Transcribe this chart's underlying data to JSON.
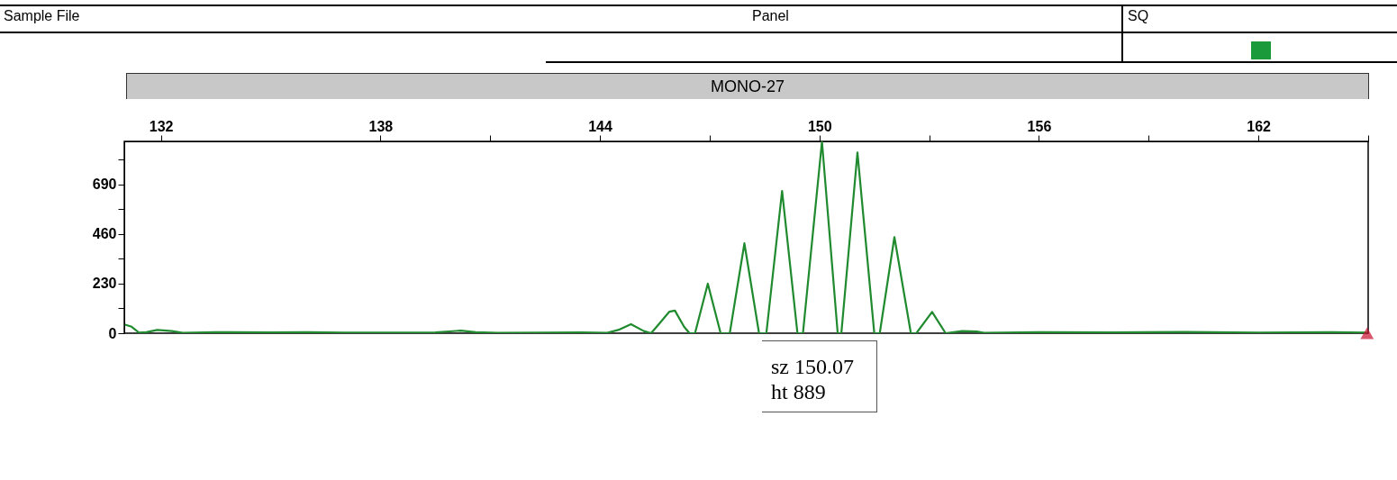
{
  "chart_data": {
    "type": "line",
    "title": "MONO-27",
    "annotations": [
      "Sample File",
      "Panel",
      "SQ",
      "sz 150.07\nht 889"
    ],
    "xlim": [
      131,
      165
    ],
    "xticks": [
      132,
      138,
      144,
      150,
      156,
      162,
      {
        "value": 141,
        "label": null
      },
      {
        "value": 147,
        "label": null
      },
      {
        "value": 153,
        "label": null
      },
      {
        "value": 159,
        "label": null
      },
      {
        "value": 165,
        "label": null
      }
    ],
    "ylim": [
      0,
      890
    ],
    "yticks": [
      0,
      230,
      460,
      690,
      {
        "value": 115,
        "label": null
      },
      {
        "value": 345,
        "label": null
      },
      {
        "value": 575,
        "label": null
      },
      {
        "value": 805,
        "label": null
      }
    ],
    "grid": false,
    "legend": false,
    "series": [
      {
        "type": "line",
        "color": "#1f8a2e",
        "x": [
          131.02,
          131.2,
          131.4,
          131.6,
          131.9,
          132.3,
          132.6,
          133.5,
          135,
          136,
          137,
          138.5,
          139.5,
          140.2,
          140.6,
          141.2,
          142.5,
          143.5,
          144.2,
          144.5,
          144.85,
          145.2,
          145.4,
          145.6,
          145.9,
          146.05,
          146.3,
          146.45,
          146.6,
          146.95,
          147.3,
          147.55,
          147.95,
          148.35,
          148.55,
          148.98,
          149.4,
          149.55,
          150.07,
          150.5,
          150.6,
          151.04,
          151.5,
          151.65,
          152.05,
          152.5,
          152.65,
          153.08,
          153.45,
          153.9,
          154.3,
          154.5,
          156,
          158,
          160,
          162,
          164,
          164.97
        ],
        "values": [
          40,
          30,
          3,
          5,
          15,
          10,
          2,
          5,
          4,
          5,
          3,
          3,
          4,
          12,
          5,
          2,
          3,
          4,
          2,
          15,
          42,
          10,
          0,
          40,
          100,
          105,
          30,
          0,
          0,
          230,
          0,
          0,
          417,
          0,
          0,
          660,
          0,
          0,
          889,
          0,
          0,
          838,
          0,
          0,
          446,
          0,
          0,
          99,
          0,
          10,
          8,
          2,
          5,
          4,
          6,
          3,
          5,
          3
        ]
      },
      {
        "type": "scatter",
        "color": "#c8102e",
        "marker": "triangle",
        "x": [
          164.97
        ],
        "values": [
          0
        ]
      }
    ]
  }
}
